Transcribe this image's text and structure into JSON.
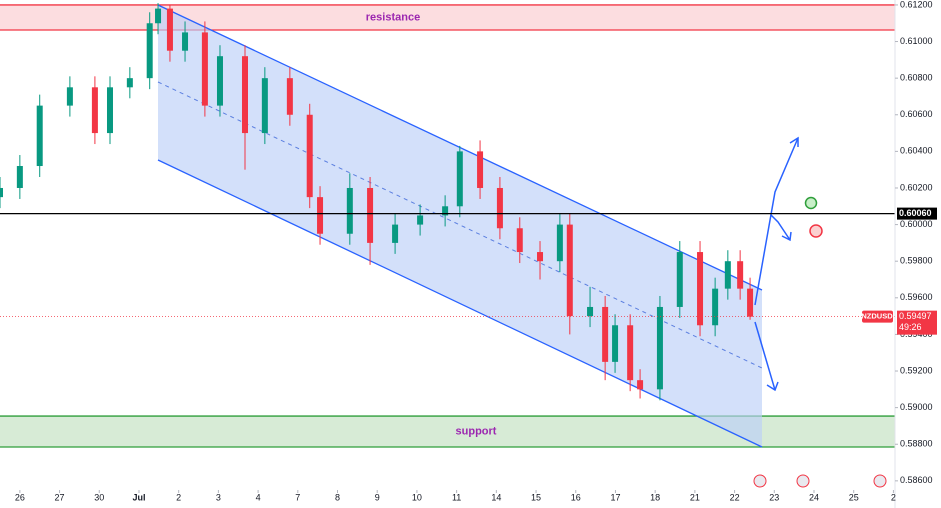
{
  "chart_data": {
    "type": "candlestick",
    "x": [
      -0.5,
      0,
      0.5,
      1.26,
      1.89,
      2.27,
      2.77,
      3.27,
      3.48,
      3.78,
      4.16,
      4.66,
      5.04,
      5.67,
      6.17,
      6.8,
      7.3,
      7.56,
      8.31,
      8.82,
      9.45,
      10.08,
      10.71,
      11.08,
      11.59,
      12.09,
      12.59,
      13.1,
      13.6,
      13.85,
      14.36,
      14.74,
      14.99,
      15.37,
      15.62,
      16.12,
      16.62,
      17.13,
      17.51,
      17.83,
      18.14,
      18.39
    ],
    "open": [
      0.6015,
      0.602,
      0.6032,
      0.6065,
      0.6075,
      0.605,
      0.6075,
      0.608,
      0.611,
      0.6118,
      0.6095,
      0.6105,
      0.6065,
      0.6092,
      0.605,
      0.608,
      0.606,
      0.6015,
      0.5995,
      0.602,
      0.599,
      0.6,
      0.6005,
      0.601,
      0.604,
      0.602,
      0.5998,
      0.5985,
      0.598,
      0.6,
      0.595,
      0.5955,
      0.5925,
      0.5945,
      0.5915,
      0.591,
      0.5955,
      0.5985,
      0.5945,
      0.5965,
      0.598,
      0.5965
    ],
    "high": [
      0.6026,
      0.6038,
      0.6071,
      0.6081,
      0.6081,
      0.6081,
      0.6086,
      0.6116,
      0.6121,
      0.612,
      0.6111,
      0.6111,
      0.6098,
      0.6098,
      0.6086,
      0.6086,
      0.6066,
      0.6021,
      0.6028,
      0.6026,
      0.6006,
      0.6011,
      0.6016,
      0.6043,
      0.6046,
      0.6026,
      0.6004,
      0.5991,
      0.6006,
      0.6006,
      0.5966,
      0.5961,
      0.5951,
      0.5951,
      0.5921,
      0.5961,
      0.5991,
      0.5991,
      0.5971,
      0.5986,
      0.5986,
      0.5971
    ],
    "low": [
      0.6009,
      0.6014,
      0.6026,
      0.6059,
      0.6044,
      0.6044,
      0.6069,
      0.6074,
      0.6104,
      0.6089,
      0.6089,
      0.6059,
      0.6059,
      0.603,
      0.6044,
      0.6054,
      0.6009,
      0.5989,
      0.5989,
      0.5978,
      0.5984,
      0.5994,
      0.5999,
      0.6004,
      0.6014,
      0.5992,
      0.5979,
      0.597,
      0.5974,
      0.594,
      0.5944,
      0.5915,
      0.5919,
      0.5909,
      0.5905,
      0.5904,
      0.5949,
      0.5939,
      0.5939,
      0.5959,
      0.5959,
      0.5948
    ],
    "close": [
      0.602,
      0.6032,
      0.6065,
      0.6075,
      0.605,
      0.6075,
      0.608,
      0.611,
      0.6118,
      0.6095,
      0.6105,
      0.6065,
      0.6092,
      0.605,
      0.608,
      0.606,
      0.6015,
      0.5995,
      0.602,
      0.599,
      0.6,
      0.6005,
      0.601,
      0.604,
      0.602,
      0.5998,
      0.5985,
      0.598,
      0.6,
      0.595,
      0.5955,
      0.5925,
      0.5945,
      0.5915,
      0.591,
      0.5955,
      0.5985,
      0.5945,
      0.5965,
      0.598,
      0.5965,
      0.59497
    ],
    "up_color": "#089981",
    "down_color": "#f23645",
    "xlim": [
      -0.5,
      22.04
    ],
    "ylim": [
      0.5855,
      0.61227
    ],
    "xticks": [
      {
        "value": 0,
        "label": "26"
      },
      {
        "value": 1,
        "label": "27"
      },
      {
        "value": 2,
        "label": "30"
      },
      {
        "value": 3,
        "label": "Jul"
      },
      {
        "value": 4,
        "label": "2"
      },
      {
        "value": 5,
        "label": "3"
      },
      {
        "value": 6,
        "label": "4"
      },
      {
        "value": 7,
        "label": "7"
      },
      {
        "value": 8,
        "label": "8"
      },
      {
        "value": 9,
        "label": "9"
      },
      {
        "value": 10,
        "label": "10"
      },
      {
        "value": 11,
        "label": "11"
      },
      {
        "value": 12,
        "label": "14"
      },
      {
        "value": 13,
        "label": "15"
      },
      {
        "value": 14,
        "label": "16"
      },
      {
        "value": 15,
        "label": "17"
      },
      {
        "value": 16,
        "label": "18"
      },
      {
        "value": 17,
        "label": "21"
      },
      {
        "value": 18,
        "label": "22"
      },
      {
        "value": 19,
        "label": "23"
      },
      {
        "value": 20,
        "label": "24"
      },
      {
        "value": 21,
        "label": "25"
      },
      {
        "value": 22,
        "label": "2"
      }
    ],
    "yticks": [
      {
        "value": 0.586,
        "label": "0.58600"
      },
      {
        "value": 0.588,
        "label": "0.58800"
      },
      {
        "value": 0.59,
        "label": "0.59000"
      },
      {
        "value": 0.592,
        "label": "0.59200"
      },
      {
        "value": 0.594,
        "label": "0.59400"
      },
      {
        "value": 0.596,
        "label": "0.59600"
      },
      {
        "value": 0.598,
        "label": "0.59800"
      },
      {
        "value": 0.6,
        "label": "0.60000"
      },
      {
        "value": 0.602,
        "label": "0.60200"
      },
      {
        "value": 0.604,
        "label": "0.60400"
      },
      {
        "value": 0.606,
        "label": "0.60600"
      },
      {
        "value": 0.608,
        "label": "0.60800"
      },
      {
        "value": 0.61,
        "label": "0.61000"
      },
      {
        "value": 0.612,
        "label": "0.61200"
      }
    ],
    "zones": [
      {
        "label": "resistance",
        "range": [
          0.61063,
          0.612
        ],
        "fill": "#fcdde0",
        "stroke": "#f23645"
      },
      {
        "label": "support",
        "range": [
          0.58785,
          0.58954
        ],
        "fill": "#d7ebd6",
        "stroke": "#2e9e3a"
      }
    ],
    "level": {
      "value": 0.6006,
      "label": "0.60060"
    },
    "last_price": {
      "value": 0.59497,
      "label": "0.59497",
      "symbol": "NZDUSD",
      "countdown": "49:26"
    }
  }
}
